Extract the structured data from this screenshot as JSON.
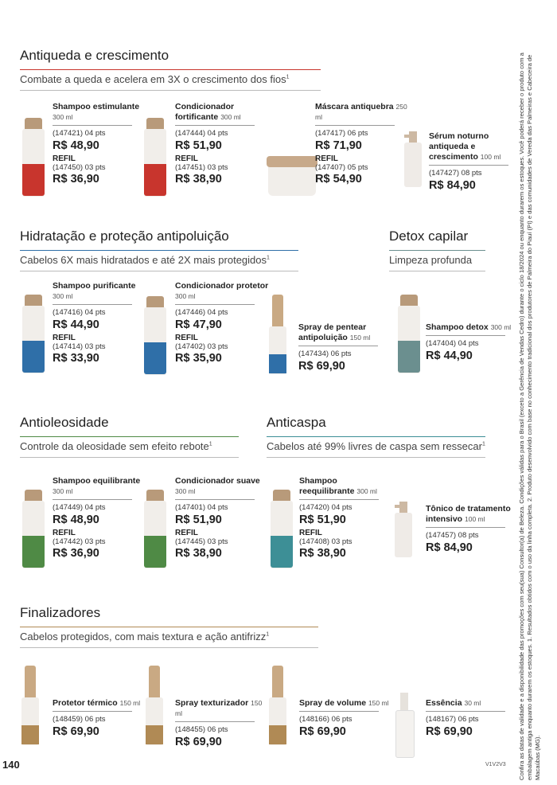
{
  "sections": [
    {
      "title": "Antiqueda e crescimento",
      "subtitle": "Combate a queda e acelera em 3X o crescimento dos fios",
      "note": "1",
      "products": [
        {
          "name": "Shampoo estimulante",
          "size": "300 ml",
          "code": "(147421) 04 pts",
          "price": "R$ 48,90",
          "refil_label": "REFIL",
          "refil_code": "(147450) 03 pts",
          "refil_price": "R$ 36,90"
        },
        {
          "name": "Condicionador fortificante",
          "size": "300 ml",
          "code": "(147444) 04 pts",
          "price": "R$ 51,90",
          "refil_label": "REFIL",
          "refil_code": "(147451) 03 pts",
          "refil_price": "R$ 38,90"
        },
        {
          "name": "Máscara antiquebra",
          "size": "250 ml",
          "code": "(147417) 06 pts",
          "price": "R$ 71,90",
          "refil_label": "REFIL",
          "refil_code": "(147407) 05 pts",
          "refil_price": "R$ 54,90"
        },
        {
          "name": "Sérum noturno antiqueda e crescimento",
          "size": "100 ml",
          "code": "(147427) 08 pts",
          "price": "R$ 84,90"
        }
      ]
    },
    {
      "title": "Hidratação e proteção antipoluição",
      "subtitle": "Cabelos 6X mais hidratados e até 2X mais protegidos",
      "note": "1",
      "products": [
        {
          "name": "Shampoo purificante",
          "size": "300 ml",
          "code": "(147416) 04 pts",
          "price": "R$ 44,90",
          "refil_label": "REFIL",
          "refil_code": "(147414) 03 pts",
          "refil_price": "R$ 33,90"
        },
        {
          "name": "Condicionador protetor",
          "size": "300 ml",
          "code": "(147446) 04 pts",
          "price": "R$ 47,90",
          "refil_label": "REFIL",
          "refil_code": "(147402) 03 pts",
          "refil_price": "R$ 35,90"
        },
        {
          "name": "Spray de pentear antipoluição",
          "size": "150 ml",
          "code": "(147434) 06 pts",
          "price": "R$ 69,90"
        }
      ]
    },
    {
      "title": "Detox capilar",
      "subtitle": "Limpeza profunda",
      "products": [
        {
          "name": "Shampoo detox",
          "size": "300 ml",
          "code": "(147404) 04 pts",
          "price": "R$ 44,90"
        }
      ]
    },
    {
      "title": "Antioleosidade",
      "subtitle": "Controle da oleosidade sem efeito rebote",
      "note": "1",
      "products": [
        {
          "name": "Shampoo equilibrante",
          "size": "300 ml",
          "code": "(147449) 04 pts",
          "price": "R$ 48,90",
          "refil_label": "REFIL",
          "refil_code": "(147442) 03 pts",
          "refil_price": "R$ 36,90"
        },
        {
          "name": "Condicionador suave",
          "size": "300 ml",
          "code": "(147401) 04 pts",
          "price": "R$ 51,90",
          "refil_label": "REFIL",
          "refil_code": "(147445) 03 pts",
          "refil_price": "R$ 38,90"
        }
      ]
    },
    {
      "title": "Anticaspa",
      "subtitle": "Cabelos até 99% livres de caspa sem ressecar",
      "note": "1",
      "products": [
        {
          "name": "Shampoo reequilibrante",
          "size": "300 ml",
          "code": "(147420) 04 pts",
          "price": "R$ 51,90",
          "refil_label": "REFIL",
          "refil_code": "(147408) 03 pts",
          "refil_price": "R$ 38,90"
        },
        {
          "name": "Tônico de tratamento intensivo",
          "size": "100 ml",
          "code": "(147457) 08 pts",
          "price": "R$ 84,90"
        }
      ]
    },
    {
      "title": "Finalizadores",
      "subtitle": "Cabelos protegidos, com mais textura e ação antifrizz",
      "note": "1",
      "products": [
        {
          "name": "Protetor térmico",
          "size": "150 ml",
          "code": "(148459) 06 pts",
          "price": "R$ 69,90"
        },
        {
          "name": "Spray texturizador",
          "size": "150 ml",
          "code": "(148455) 06 pts",
          "price": "R$ 69,90"
        },
        {
          "name": "Spray de volume",
          "size": "150 ml",
          "code": "(148166) 06 pts",
          "price": "R$ 69,90"
        },
        {
          "name": "Essência",
          "size": "30 ml",
          "code": "(148167) 06 pts",
          "price": "R$ 69,90"
        }
      ]
    }
  ],
  "side_note": "Confira as datas de validade e a disponibilidade das promoções com seu(sua) Consultor(a) de Beleza. Condições válidas para o Brasil (exceto a Gerência de Vendas Cedro) durante o ciclo 18/2024 ou enquanto durarem os estoques. Você poderá receber o produto com a embalagem antiga enquanto durarem os estoques. 1. Resultados obtidos com o uso da linha completa. 2. Produto desenvolvido com base no conhecimento tradicional dos produtores de Palmeira do Piauí (PI) e das comunidades de Vereda das Palmeiras e Cabeceira de Macaúbas (MG).",
  "page_number": "140",
  "version": "V1V2V3"
}
